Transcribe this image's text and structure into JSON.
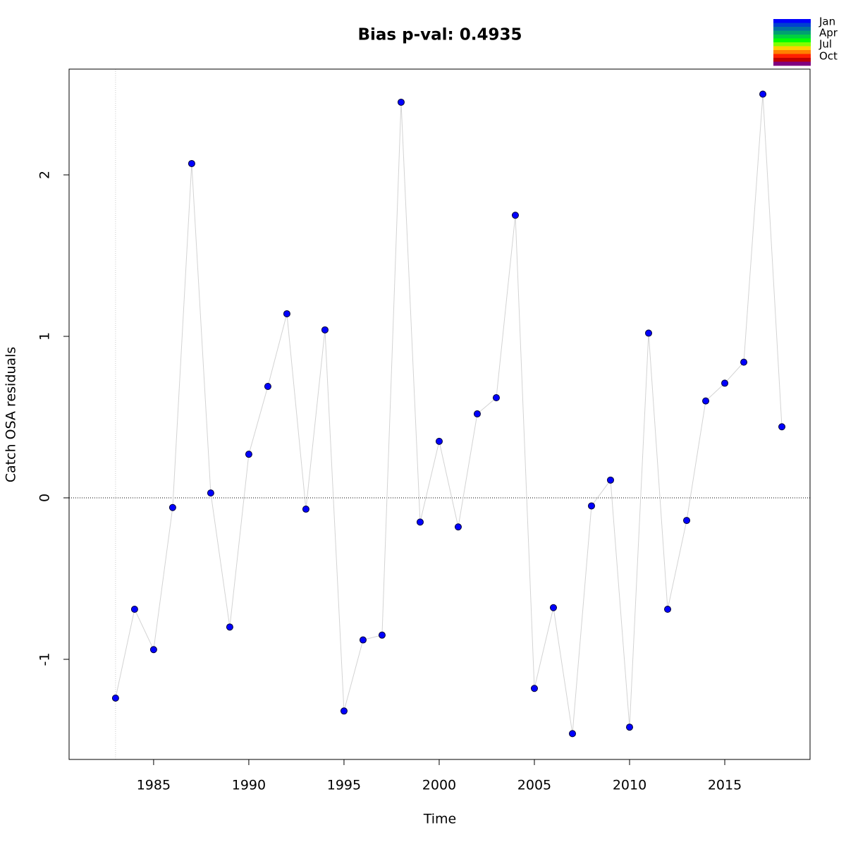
{
  "chart_data": {
    "type": "line",
    "title": "Bias p-val: 0.4935",
    "title_color": "#228b22",
    "x_label": "Time",
    "y_label": "Catch OSA residuals",
    "x": [
      1983,
      1984,
      1985,
      1986,
      1987,
      1988,
      1989,
      1990,
      1991,
      1992,
      1993,
      1994,
      1995,
      1996,
      1997,
      1998,
      1999,
      2000,
      2001,
      2002,
      2003,
      2004,
      2005,
      2006,
      2007,
      2008,
      2009,
      2010,
      2011,
      2012,
      2013,
      2014,
      2015,
      2016,
      2017,
      2018
    ],
    "values": [
      -1.24,
      -0.69,
      -0.94,
      -0.06,
      2.07,
      0.03,
      -0.8,
      0.27,
      0.69,
      1.14,
      -0.07,
      1.04,
      -1.32,
      -0.88,
      -0.85,
      2.45,
      -0.15,
      0.35,
      -0.18,
      0.52,
      0.62,
      1.75,
      -1.18,
      -0.68,
      -1.46,
      -0.05,
      0.11,
      -1.42,
      1.02,
      -0.69,
      -0.14,
      0.6,
      0.71,
      0.84,
      2.5,
      0.44
    ],
    "color": "#0000ff",
    "line_color": "#d3d3d3",
    "xlim": [
      1980.56,
      2019.48
    ],
    "ylim": [
      -1.62,
      2.655
    ],
    "xticks": [
      1985,
      1990,
      1995,
      2000,
      2005,
      2010,
      2015
    ],
    "yticks": [
      -1,
      0,
      1,
      2
    ],
    "hline_y": 0,
    "vline_x": 1983,
    "legend": {
      "labels": [
        "Jan",
        "Apr",
        "Jul",
        "Oct"
      ],
      "colors": [
        "#0000ff",
        "#0040d0",
        "#0070a0",
        "#00a070",
        "#00d040",
        "#00ff00",
        "#80ff00",
        "#ffd000",
        "#ff8000",
        "#ff2000",
        "#c00000",
        "#800080"
      ]
    }
  }
}
